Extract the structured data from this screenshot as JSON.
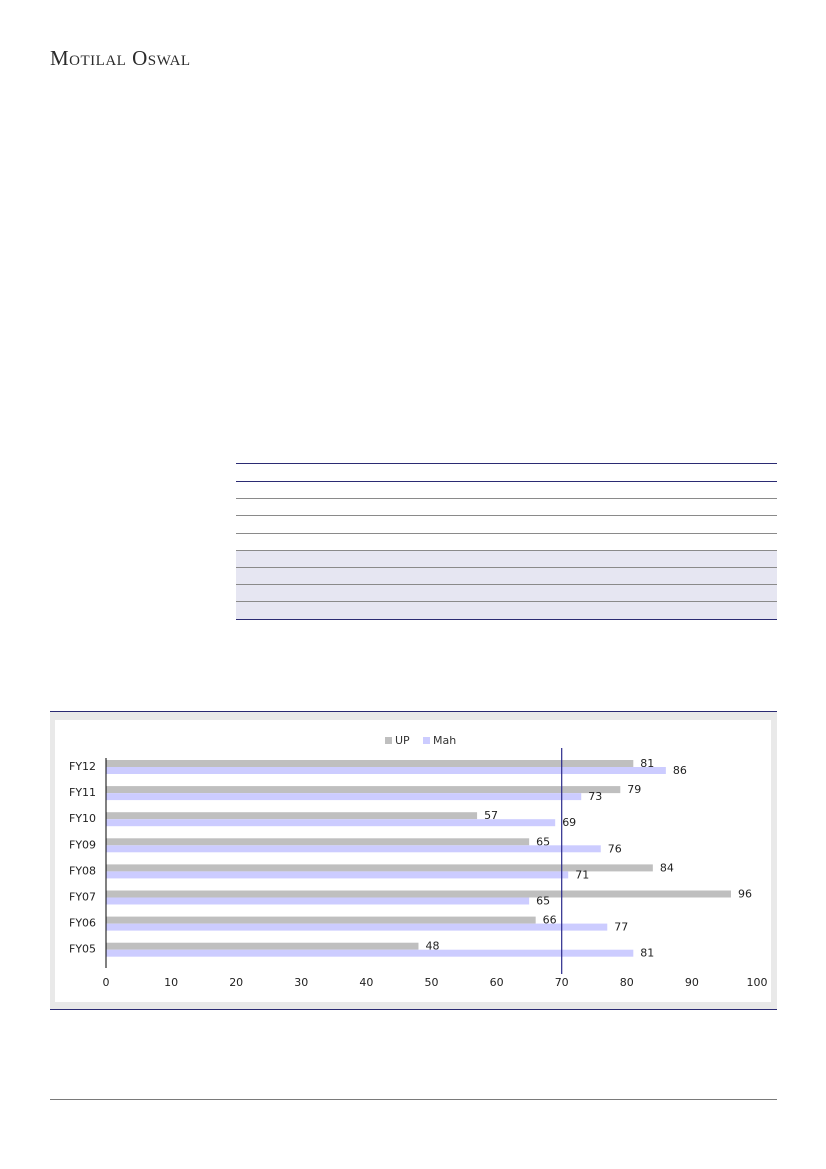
{
  "brand": {
    "name": "Motilal Oswal"
  },
  "colors": {
    "up": "#bfbfbf",
    "mah": "#ccccff",
    "refline": "#2a2a8a",
    "axis": "#000000"
  },
  "chart_data": {
    "type": "bar",
    "orientation": "horizontal",
    "categories": [
      "FY12",
      "FY11",
      "FY10",
      "FY09",
      "FY08",
      "FY07",
      "FY06",
      "FY05"
    ],
    "series": [
      {
        "name": "UP",
        "values": [
          81,
          79,
          57,
          65,
          84,
          96,
          66,
          48
        ]
      },
      {
        "name": "Mah",
        "values": [
          86,
          73,
          69,
          76,
          71,
          65,
          77,
          81
        ]
      }
    ],
    "xlim": [
      0,
      100
    ],
    "xticks": [
      0,
      10,
      20,
      30,
      40,
      50,
      60,
      70,
      80,
      90,
      100
    ],
    "reference_line": 70,
    "legend": "top-center",
    "grid": false
  }
}
